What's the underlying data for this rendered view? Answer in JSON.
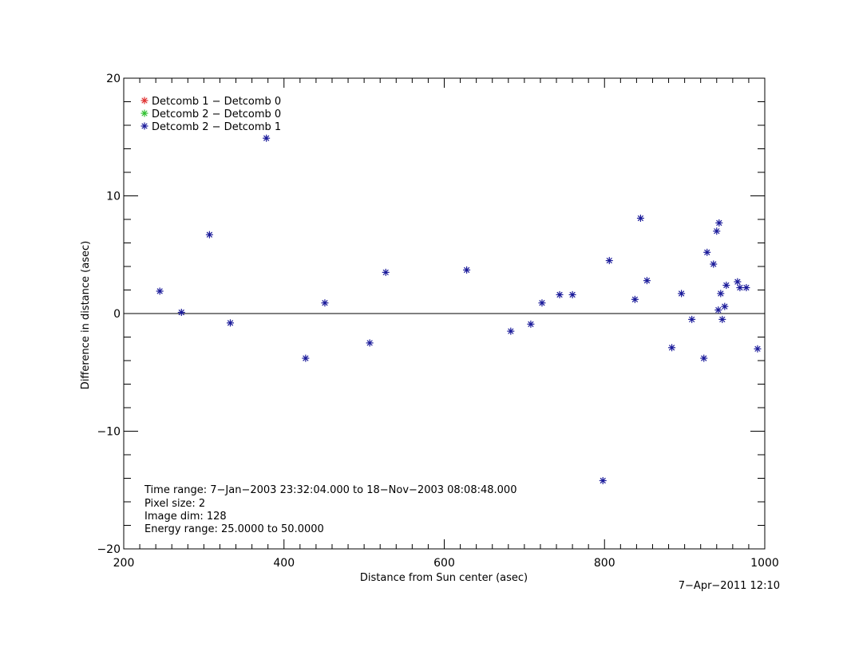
{
  "chart_data": {
    "type": "scatter",
    "xlabel": "Distance from Sun center (asec)",
    "ylabel": "Difference in distance (asec)",
    "xlim": [
      200,
      1000
    ],
    "ylim": [
      -20,
      20
    ],
    "x_ticks": [
      200,
      400,
      600,
      800,
      1000
    ],
    "y_ticks": [
      -20,
      -10,
      0,
      10,
      20
    ],
    "x_tick_labels": [
      "200",
      "400",
      "600",
      "800",
      "1000"
    ],
    "y_tick_labels": [
      "−20",
      "−10",
      "0",
      "10",
      "20"
    ],
    "grid": false,
    "zero_line": 0,
    "legend_placement": "top-left",
    "legend": [
      {
        "label": "Detcomb 1 − Detcomb 0",
        "color": "#e03030"
      },
      {
        "label": "Detcomb 2 − Detcomb 0",
        "color": "#30c030"
      },
      {
        "label": "Detcomb 2 − Detcomb 1",
        "color": "#1a1a9a"
      }
    ],
    "series": [
      {
        "name": "Detcomb 2 − Detcomb 1",
        "color": "#1a1a9a",
        "x": [
          245,
          272,
          307,
          333,
          378,
          427,
          451,
          507,
          527,
          628,
          683,
          708,
          722,
          744,
          760,
          798,
          806,
          838,
          845,
          853,
          884,
          896,
          909,
          924,
          928,
          936,
          940,
          942,
          943,
          945,
          947,
          950,
          952,
          966,
          969,
          977,
          991
        ],
        "y": [
          1.9,
          0.1,
          6.7,
          -0.8,
          14.9,
          -3.8,
          0.9,
          -2.5,
          3.5,
          3.7,
          -1.5,
          -0.9,
          0.9,
          1.6,
          1.6,
          -14.2,
          4.5,
          1.2,
          8.1,
          2.8,
          -2.9,
          1.7,
          -0.5,
          -3.8,
          5.2,
          4.2,
          7.0,
          0.3,
          7.7,
          1.7,
          -0.5,
          0.6,
          2.4,
          2.7,
          2.2,
          2.2,
          -3.0
        ]
      }
    ],
    "annotations": [
      "Time range:  7−Jan−2003 23:32:04.000 to 18−Nov−2003 08:08:48.000",
      "Pixel size: 2",
      "Image dim: 128",
      "Energy range: 25.0000 to 50.0000"
    ],
    "timestamp": "7−Apr−2011 12:10"
  }
}
